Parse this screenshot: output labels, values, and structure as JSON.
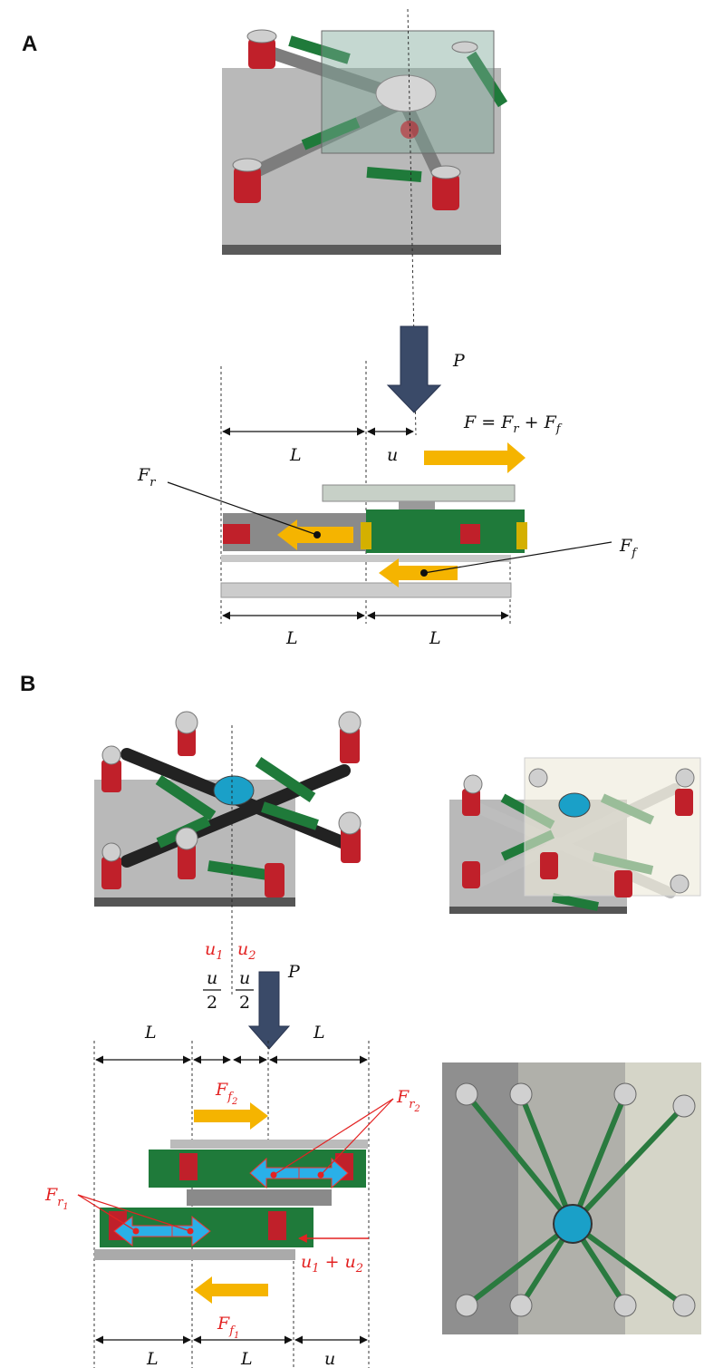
{
  "panel_a": {
    "label": "A",
    "load_label": "P",
    "force_eq": "F = Fr + Ff",
    "fr_label": "Fr",
    "ff_label": "Ff",
    "dim_top_l": "L",
    "dim_top_u": "u",
    "dim_bottom_l1": "L",
    "dim_bottom_l2": "L"
  },
  "panel_b": {
    "label": "B",
    "u1_label": "u1",
    "u2_label": "u2",
    "half_u_num_1": "u",
    "half_u_den_1": "2",
    "half_u_num_2": "u",
    "half_u_den_2": "2",
    "load_label": "P",
    "dim_top_l1": "L",
    "dim_top_l2": "L",
    "ff2_label": "Ff2",
    "fr2_label": "Fr2",
    "fr1_label": "Fr1",
    "ff1_label": "Ff1",
    "u_sum_label": "u1 + u2",
    "dim_bottom_l1": "L",
    "dim_bottom_l2": "L",
    "dim_bottom_u": "u"
  },
  "colors": {
    "plate": "#b8b8b8",
    "plate_dark": "#555555",
    "link_green": "#1f7a3a",
    "spring_red": "#c0202a",
    "hub_blue": "#1aa0c8",
    "arrow_yellow": "#f5b400",
    "arrow_blue": "#2ab0e8",
    "arrow_navy": "#3a4a68",
    "label_red": "#e32222"
  }
}
